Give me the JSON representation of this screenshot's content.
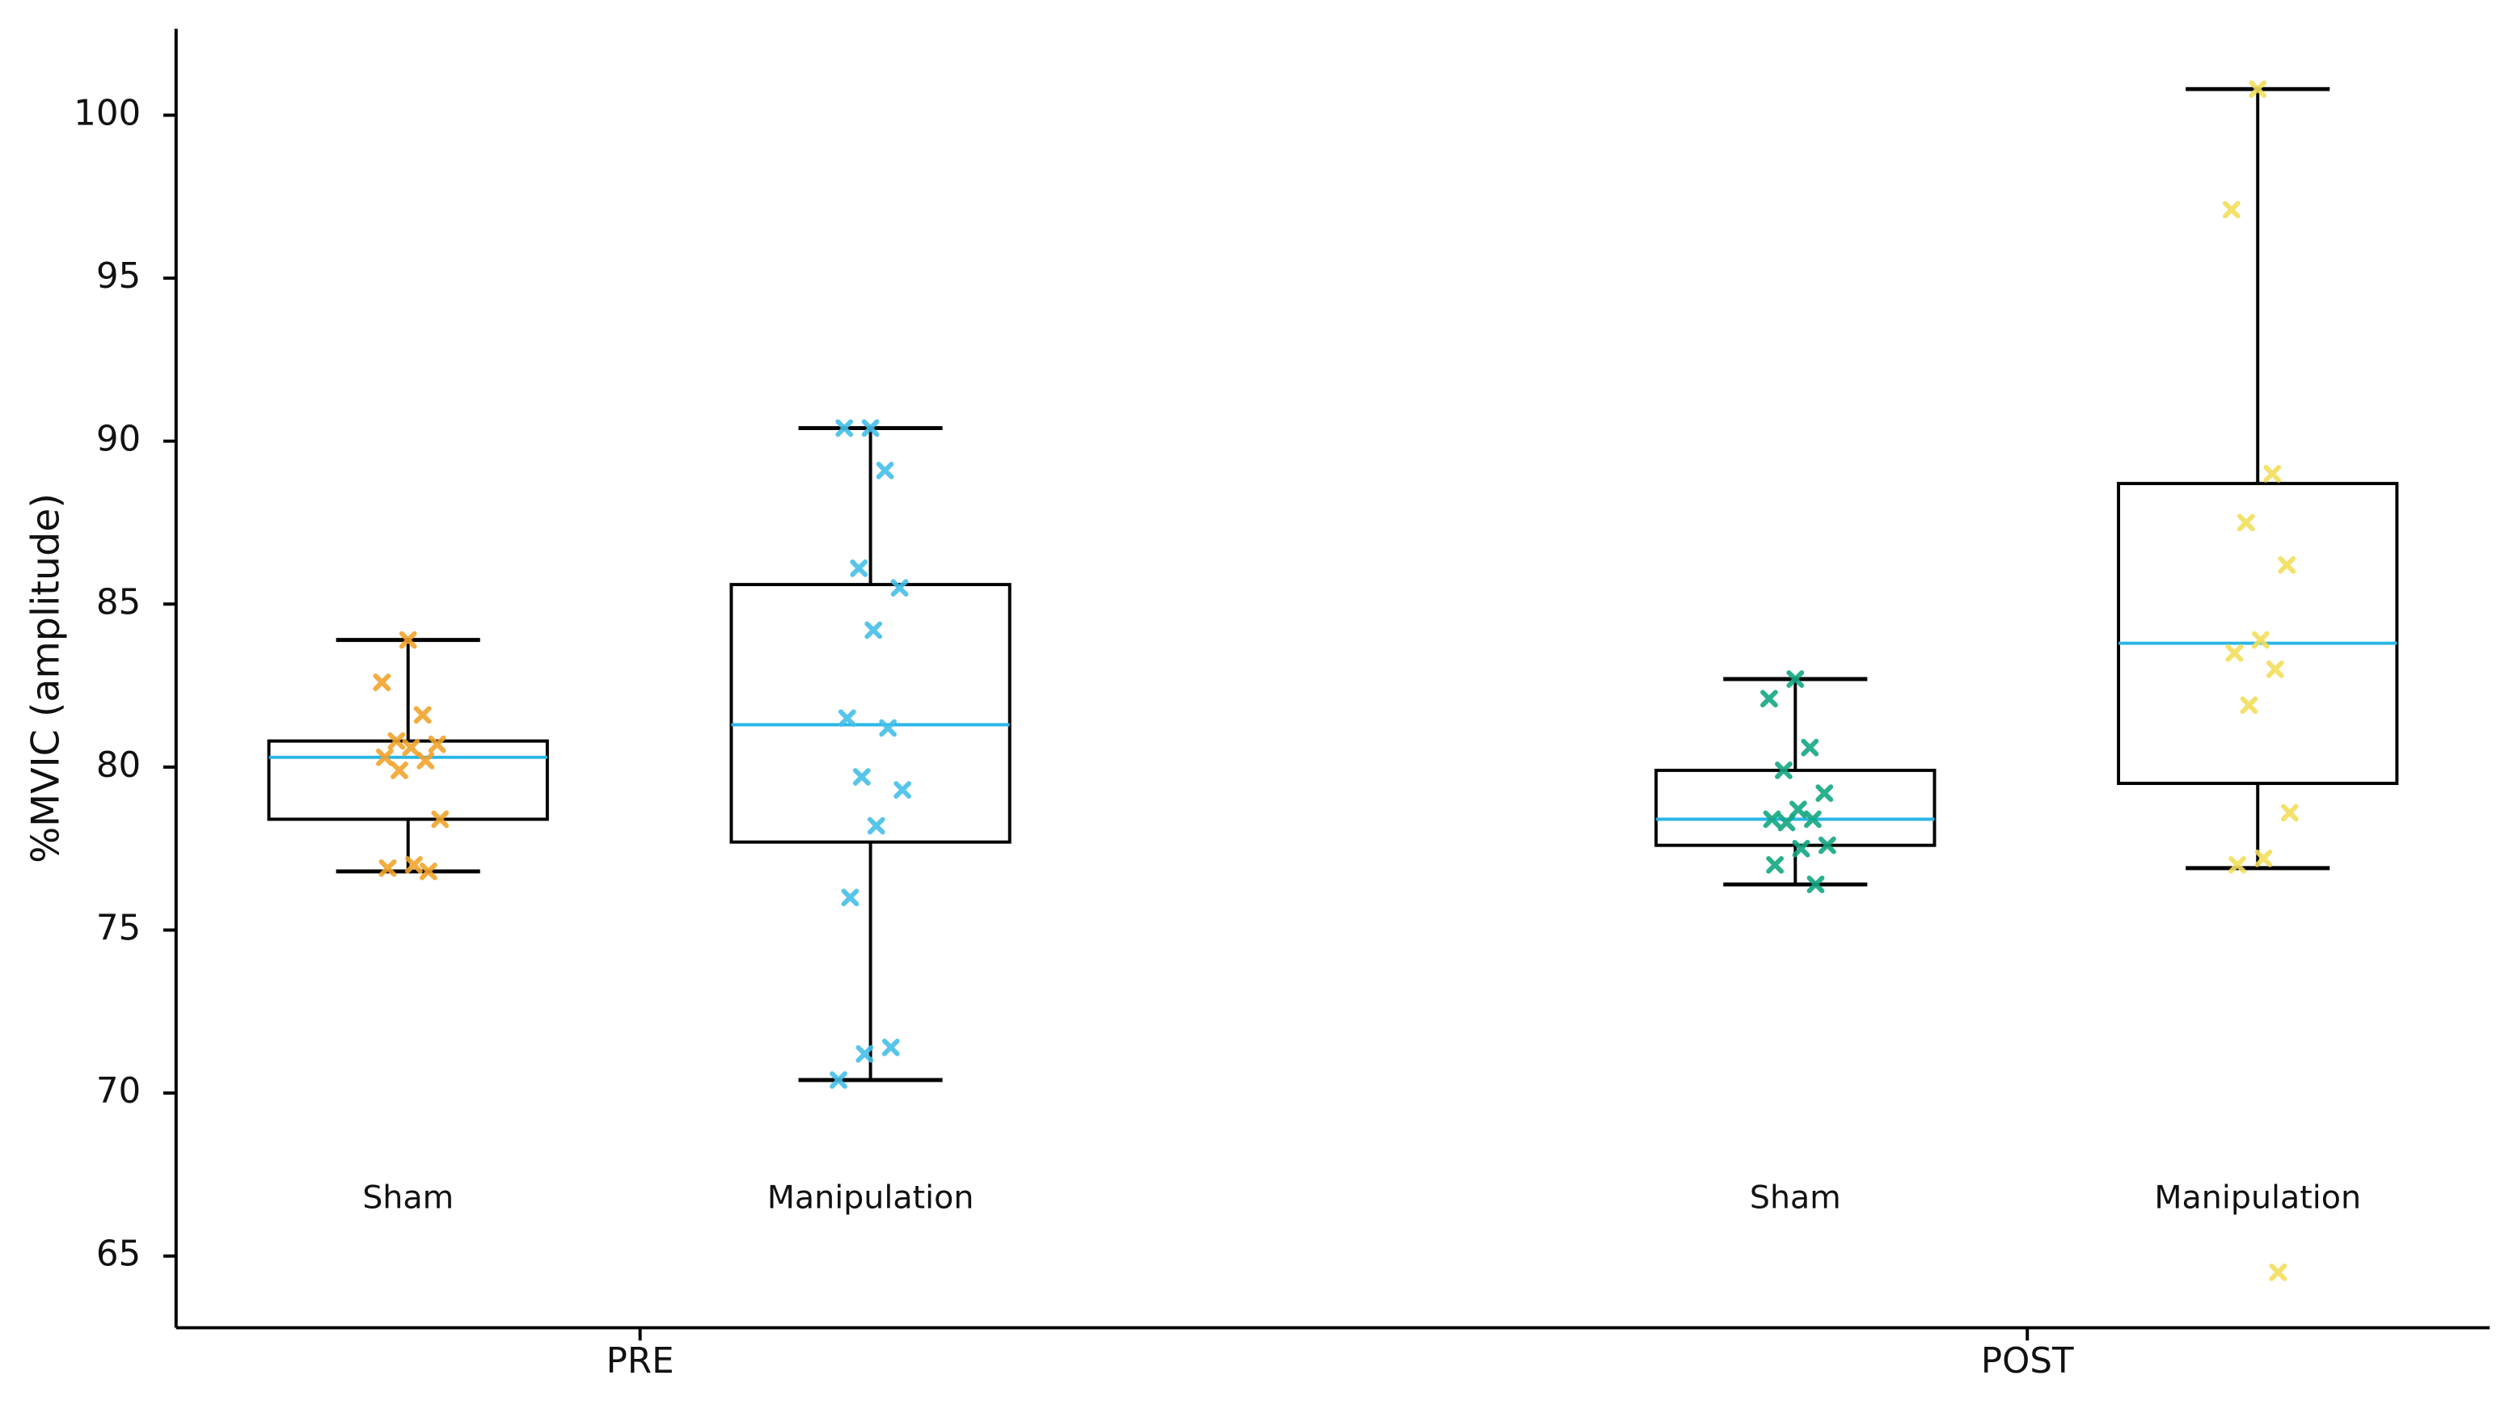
{
  "chart_data": {
    "type": "box",
    "ylabel": "%MVIC (amplitude)",
    "ylim": [
      62.8,
      102.65
    ],
    "yticks": [
      65,
      70,
      75,
      80,
      85,
      90,
      95,
      100
    ],
    "median_color": "#29b6e6",
    "groups": [
      {
        "name": "PRE",
        "boxes": [
          {
            "name": "Sham",
            "color": "#f2a42c",
            "whislo": 76.8,
            "q1": 78.4,
            "med": 80.3,
            "q3": 80.8,
            "whishi": 83.9,
            "points": [
              83.9,
              82.6,
              81.6,
              80.8,
              80.7,
              80.6,
              80.3,
              80.2,
              79.9,
              78.4,
              77.0,
              76.9,
              76.8
            ]
          },
          {
            "name": "Manipulation",
            "color": "#45bfe8",
            "whislo": 70.4,
            "q1": 77.7,
            "med": 81.3,
            "q3": 85.6,
            "whishi": 90.4,
            "points": [
              90.4,
              90.4,
              89.1,
              86.1,
              85.5,
              84.2,
              81.5,
              81.2,
              79.7,
              79.3,
              78.2,
              76.0,
              71.4,
              71.2,
              70.4
            ]
          }
        ]
      },
      {
        "name": "POST",
        "boxes": [
          {
            "name": "Sham",
            "color": "#14a882",
            "whislo": 76.4,
            "q1": 77.6,
            "med": 78.4,
            "q3": 79.9,
            "whishi": 82.7,
            "points": [
              82.7,
              82.1,
              80.6,
              79.9,
              79.2,
              78.7,
              78.4,
              78.4,
              78.3,
              77.6,
              77.5,
              77.0,
              76.4
            ]
          },
          {
            "name": "Manipulation",
            "color": "#f2de5c",
            "whislo": 76.9,
            "q1": 79.5,
            "med": 83.8,
            "q3": 88.7,
            "whishi": 100.8,
            "points": [
              100.8,
              97.1,
              89.0,
              87.5,
              86.2,
              83.9,
              83.5,
              83.0,
              81.9,
              78.6,
              77.2,
              77.0,
              64.5
            ]
          }
        ]
      }
    ]
  }
}
